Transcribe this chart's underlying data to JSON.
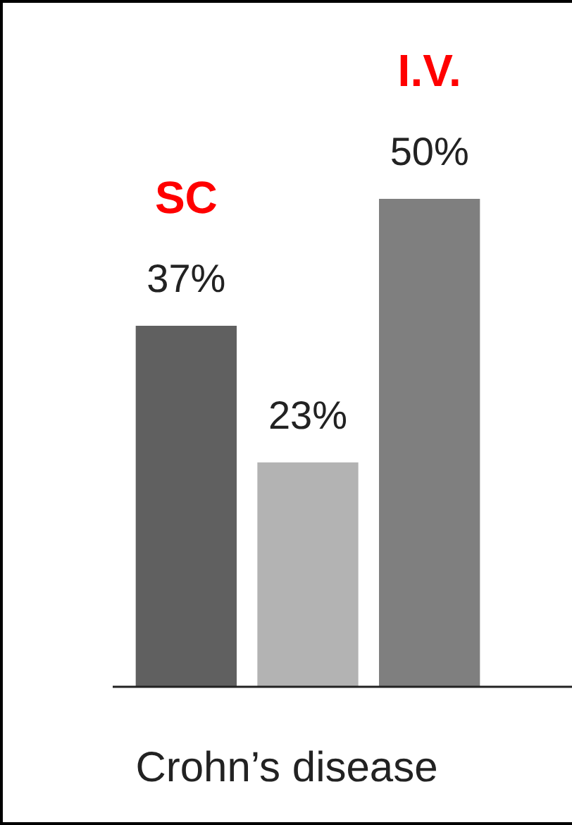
{
  "chart_data": {
    "type": "bar",
    "categories": [
      null,
      null,
      null
    ],
    "values": [
      37,
      23,
      50
    ],
    "colors": [
      "#606060",
      "#b3b3b3",
      "#7f7f7f"
    ],
    "xlabel": "Crohn’s disease",
    "value_labels": [
      "37%",
      "23%",
      "50%"
    ],
    "annotations": [
      {
        "text": "SC",
        "y": 37
      },
      {
        "text": "I.V.",
        "y": 50
      }
    ],
    "grid": false,
    "legend": false
  }
}
